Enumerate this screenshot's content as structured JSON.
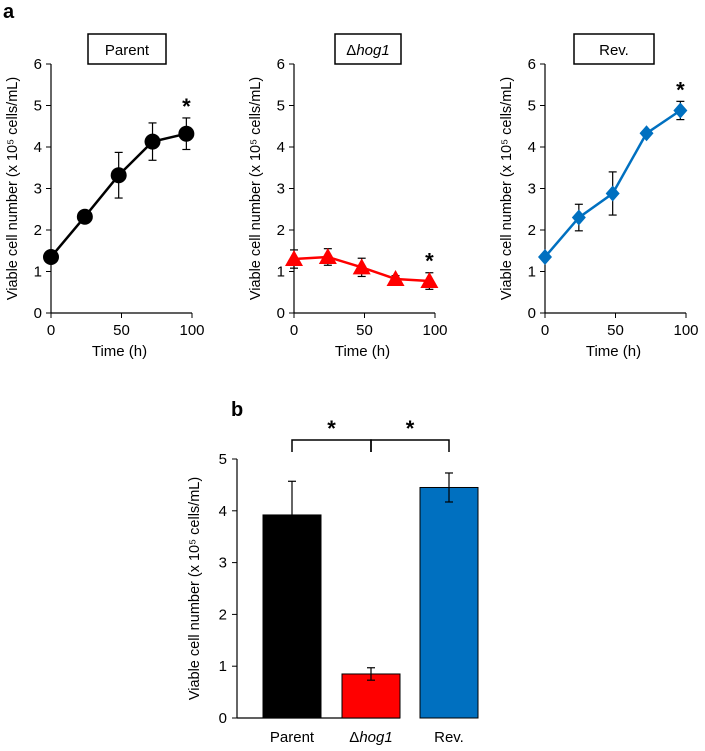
{
  "panel_a_label": "a",
  "panel_b_label": "b",
  "colors": {
    "parent": "#000000",
    "hog1": "#ff0000",
    "rev": "#0070c0"
  },
  "chart_data": [
    {
      "type": "line",
      "title": "Parent",
      "xlabel": "Time (h)",
      "ylabel": "Viable cell number (x 10⁵ cells/mL)",
      "xlim": [
        0,
        100
      ],
      "ylim": [
        0,
        6
      ],
      "xticks": [
        0,
        50,
        100
      ],
      "yticks": [
        0,
        1,
        2,
        3,
        4,
        5,
        6
      ],
      "x": [
        0,
        24,
        48,
        72,
        96
      ],
      "y": [
        1.35,
        2.32,
        3.32,
        4.13,
        4.32
      ],
      "err": [
        0,
        0.1,
        0.55,
        0.45,
        0.38
      ],
      "marker": "circle",
      "color": "#000000",
      "annotation": {
        "text": "*",
        "x": 96
      }
    },
    {
      "type": "line",
      "title_prefix": "Δ",
      "title_italic": "hog1",
      "xlabel": "Time (h)",
      "ylabel": "Viable cell number (x 10⁵ cells/mL)",
      "xlim": [
        0,
        100
      ],
      "ylim": [
        0,
        6
      ],
      "xticks": [
        0,
        50,
        100
      ],
      "yticks": [
        0,
        1,
        2,
        3,
        4,
        5,
        6
      ],
      "x": [
        0,
        24,
        48,
        72,
        96
      ],
      "y": [
        1.3,
        1.35,
        1.1,
        0.82,
        0.77
      ],
      "err": [
        0.22,
        0.2,
        0.22,
        0.08,
        0.2
      ],
      "marker": "triangle",
      "color": "#ff0000",
      "annotation": {
        "text": "*",
        "x": 96
      }
    },
    {
      "type": "line",
      "title": "Rev.",
      "xlabel": "Time (h)",
      "ylabel": "Viable cell number (x 10⁵ cells/mL)",
      "xlim": [
        0,
        100
      ],
      "ylim": [
        0,
        6
      ],
      "xticks": [
        0,
        50,
        100
      ],
      "yticks": [
        0,
        1,
        2,
        3,
        4,
        5,
        6
      ],
      "x": [
        0,
        24,
        48,
        72,
        96
      ],
      "y": [
        1.35,
        2.3,
        2.88,
        4.33,
        4.88
      ],
      "err": [
        0,
        0.32,
        0.52,
        0.05,
        0.22
      ],
      "marker": "diamond",
      "color": "#0070c0",
      "annotation": {
        "text": "*",
        "x": 96
      }
    },
    {
      "type": "bar",
      "ylabel": "Viable cell number (x 10⁵ cells/mL)",
      "ylim": [
        0,
        5
      ],
      "yticks": [
        0,
        1,
        2,
        3,
        4,
        5
      ],
      "categories": [
        {
          "prefix": "",
          "italic": "",
          "text": "Parent"
        },
        {
          "prefix": "Δ",
          "italic": "hog1",
          "text": ""
        },
        {
          "prefix": "",
          "italic": "",
          "text": "Rev."
        }
      ],
      "values": [
        3.92,
        0.85,
        4.45
      ],
      "err": [
        0.65,
        0.12,
        0.28
      ],
      "colors": [
        "#000000",
        "#ff0000",
        "#0070c0"
      ],
      "significance": [
        {
          "from": 0,
          "to": 1,
          "text": "*"
        },
        {
          "from": 1,
          "to": 2,
          "text": "*"
        }
      ]
    }
  ]
}
